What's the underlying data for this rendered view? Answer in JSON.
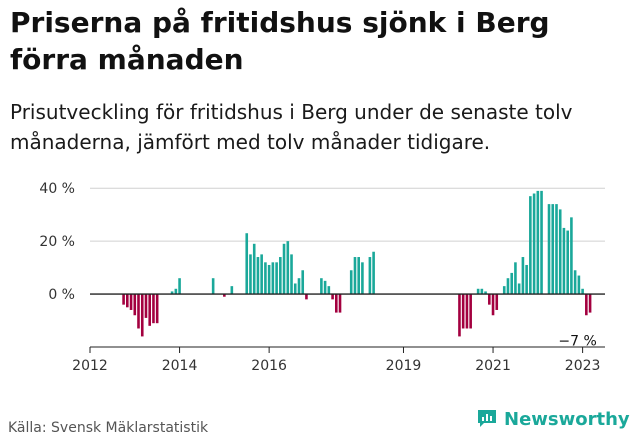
{
  "title": "Priserna på fritidshus sjönk i Berg förra månaden",
  "subtitle": "Prisutveckling för fritidshus i Berg under de senaste tolv månaderna, jämfört med tolv månader tidigare.",
  "source": "Källa: Svensk Mäklarstatistik",
  "logo_text": "Newsworthy",
  "colors": {
    "positive": "#1aa89a",
    "negative": "#a3003f",
    "axis": "#222222",
    "grid": "#d0d0d0",
    "brand": "#1aa89a"
  },
  "chart_data": {
    "type": "bar",
    "xlabel": "",
    "ylabel": "",
    "ylim": [
      -20,
      45
    ],
    "y_ticks": [
      {
        "value": 40,
        "label": "40 %"
      },
      {
        "value": 20,
        "label": "20 %"
      },
      {
        "value": 0,
        "label": "0 %"
      }
    ],
    "x_ticks": [
      {
        "value": 2012.0,
        "label": "2012"
      },
      {
        "value": 2014.0,
        "label": "2014"
      },
      {
        "value": 2016.0,
        "label": "2016"
      },
      {
        "value": 2019.0,
        "label": "2019"
      },
      {
        "value": 2021.0,
        "label": "2021"
      },
      {
        "value": 2023.0,
        "label": "2023"
      }
    ],
    "xlim": [
      2012.0,
      2023.5
    ],
    "grid": true,
    "annotation": {
      "x": 2023.0,
      "value": -7,
      "label": "−7 %"
    },
    "series": [
      {
        "values": [
          [
            2012.75,
            -4
          ],
          [
            2012.833,
            -5
          ],
          [
            2012.917,
            -6
          ],
          [
            2013.0,
            -8
          ],
          [
            2013.083,
            -13
          ],
          [
            2013.167,
            -16
          ],
          [
            2013.25,
            -9
          ],
          [
            2013.333,
            -12
          ],
          [
            2013.417,
            -11
          ],
          [
            2013.5,
            -11
          ],
          [
            2013.833,
            1
          ],
          [
            2013.917,
            2
          ],
          [
            2014.0,
            6
          ],
          [
            2014.75,
            6
          ],
          [
            2015.0,
            -1
          ],
          [
            2015.167,
            3
          ],
          [
            2015.5,
            23
          ],
          [
            2015.583,
            15
          ],
          [
            2015.667,
            19
          ],
          [
            2015.75,
            14
          ],
          [
            2015.833,
            15
          ],
          [
            2015.917,
            12
          ],
          [
            2016.0,
            11
          ],
          [
            2016.083,
            12
          ],
          [
            2016.167,
            12
          ],
          [
            2016.25,
            14
          ],
          [
            2016.333,
            19
          ],
          [
            2016.417,
            20
          ],
          [
            2016.5,
            15
          ],
          [
            2016.583,
            4
          ],
          [
            2016.667,
            6
          ],
          [
            2016.75,
            9
          ],
          [
            2016.833,
            -2
          ],
          [
            2017.167,
            6
          ],
          [
            2017.25,
            5
          ],
          [
            2017.333,
            3
          ],
          [
            2017.417,
            -2
          ],
          [
            2017.5,
            -7
          ],
          [
            2017.583,
            -7
          ],
          [
            2017.833,
            9
          ],
          [
            2017.917,
            14
          ],
          [
            2018.0,
            14
          ],
          [
            2018.083,
            12
          ],
          [
            2018.25,
            14
          ],
          [
            2018.333,
            16
          ],
          [
            2020.25,
            -16
          ],
          [
            2020.333,
            -13
          ],
          [
            2020.417,
            -13
          ],
          [
            2020.5,
            -13
          ],
          [
            2020.583,
            0
          ],
          [
            2020.667,
            2
          ],
          [
            2020.75,
            2
          ],
          [
            2020.833,
            1
          ],
          [
            2020.917,
            -4
          ],
          [
            2021.0,
            -8
          ],
          [
            2021.083,
            -6
          ],
          [
            2021.25,
            3
          ],
          [
            2021.333,
            6
          ],
          [
            2021.417,
            8
          ],
          [
            2021.5,
            12
          ],
          [
            2021.583,
            4
          ],
          [
            2021.667,
            14
          ],
          [
            2021.75,
            11
          ],
          [
            2021.833,
            37
          ],
          [
            2021.917,
            38
          ],
          [
            2022.0,
            39
          ],
          [
            2022.083,
            39
          ],
          [
            2022.25,
            34
          ],
          [
            2022.333,
            34
          ],
          [
            2022.417,
            34
          ],
          [
            2022.5,
            32
          ],
          [
            2022.583,
            25
          ],
          [
            2022.667,
            24
          ],
          [
            2022.75,
            29
          ],
          [
            2022.833,
            9
          ],
          [
            2022.917,
            7
          ],
          [
            2023.0,
            2
          ],
          [
            2023.083,
            -8
          ],
          [
            2023.167,
            -7
          ]
        ]
      }
    ]
  }
}
